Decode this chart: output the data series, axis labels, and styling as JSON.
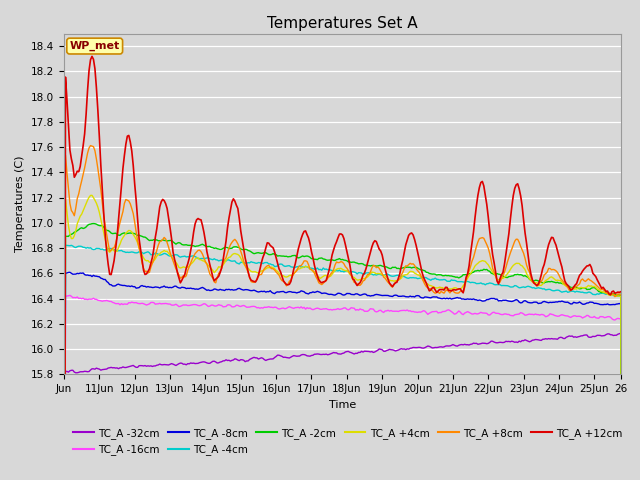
{
  "title": "Temperatures Set A",
  "xlabel": "Time",
  "ylabel": "Temperatures (C)",
  "ylim": [
    15.8,
    18.5
  ],
  "xlim": [
    0,
    360
  ],
  "yticks": [
    15.8,
    16.0,
    16.2,
    16.4,
    16.6,
    16.8,
    17.0,
    17.2,
    17.4,
    17.6,
    17.8,
    18.0,
    18.2,
    18.4
  ],
  "xtick_labels": [
    "Jun",
    "11Jun",
    "12Jun",
    "13Jun",
    "14Jun",
    "15Jun",
    "16Jun",
    "17Jun",
    "18Jun",
    "19Jun",
    "20Jun",
    "21Jun",
    "22Jun",
    "23Jun",
    "24Jun",
    "25Jun",
    "26"
  ],
  "xtick_positions": [
    0,
    24,
    48,
    72,
    96,
    120,
    144,
    168,
    192,
    216,
    240,
    264,
    288,
    312,
    336,
    360,
    378
  ],
  "series": [
    {
      "label": "TC_A -32cm",
      "color": "#9900cc",
      "lw": 1.0
    },
    {
      "label": "TC_A -16cm",
      "color": "#ff44ff",
      "lw": 1.0
    },
    {
      "label": "TC_A -8cm",
      "color": "#0000dd",
      "lw": 1.0
    },
    {
      "label": "TC_A -4cm",
      "color": "#00cccc",
      "lw": 1.0
    },
    {
      "label": "TC_A -2cm",
      "color": "#00cc00",
      "lw": 1.0
    },
    {
      "label": "TC_A +4cm",
      "color": "#dddd00",
      "lw": 1.0
    },
    {
      "label": "TC_A +8cm",
      "color": "#ff8800",
      "lw": 1.0
    },
    {
      "label": "TC_A +12cm",
      "color": "#dd0000",
      "lw": 1.2
    }
  ],
  "wp_met_label": "WP_met",
  "background_color": "#d8d8d8",
  "grid_color": "#ffffff",
  "title_fontsize": 11,
  "axis_fontsize": 8,
  "tick_fontsize": 7.5
}
